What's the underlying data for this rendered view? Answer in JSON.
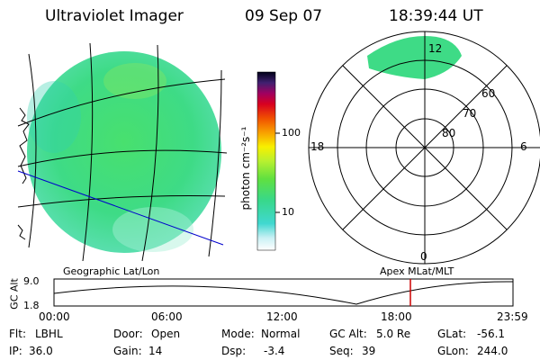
{
  "header": {
    "instrument": "Ultraviolet Imager",
    "date": "09 Sep 07",
    "time": "18:39:44 UT"
  },
  "colorbar": {
    "label": "photon cm⁻²s⁻¹",
    "ticks": [
      "100",
      "10"
    ]
  },
  "polar": {
    "mlt_labels": {
      "top": "12",
      "left": "18",
      "right": "6",
      "bottom": "0"
    },
    "lat_labels": [
      "60",
      "70",
      "80"
    ]
  },
  "panels": {
    "left_caption": "Geographic Lat/Lon",
    "right_caption": "Apex MLat/MLT"
  },
  "altplot": {
    "ylabel": "GC Alt",
    "ymax": "9.0",
    "ymin": "1.8",
    "xticks": [
      "00:00",
      "06:00",
      "12:00",
      "18:00",
      "23:59"
    ]
  },
  "info": {
    "row1": [
      {
        "label": "Flt:",
        "value": "LBHL"
      },
      {
        "label": "Door:",
        "value": "Open"
      },
      {
        "label": "Mode:",
        "value": "Normal"
      },
      {
        "label": "GC Alt:",
        "value": "5.0 Re"
      },
      {
        "label": "GLat:",
        "value": "-56.1"
      }
    ],
    "row2": [
      {
        "label": "IP:",
        "value": "36.0"
      },
      {
        "label": "Gain:",
        "value": "14"
      },
      {
        "label": "Dsp:",
        "value": "-3.4"
      },
      {
        "label": "Seq:",
        "value": "39"
      },
      {
        "label": "GLon:",
        "value": "244.0"
      }
    ]
  },
  "colors": {
    "disk": "#3fe08a",
    "disk_dark": "#22c0c8",
    "disk_light": "#9ff28a",
    "track_line": "#0000cc",
    "marker": "#cc0000"
  }
}
